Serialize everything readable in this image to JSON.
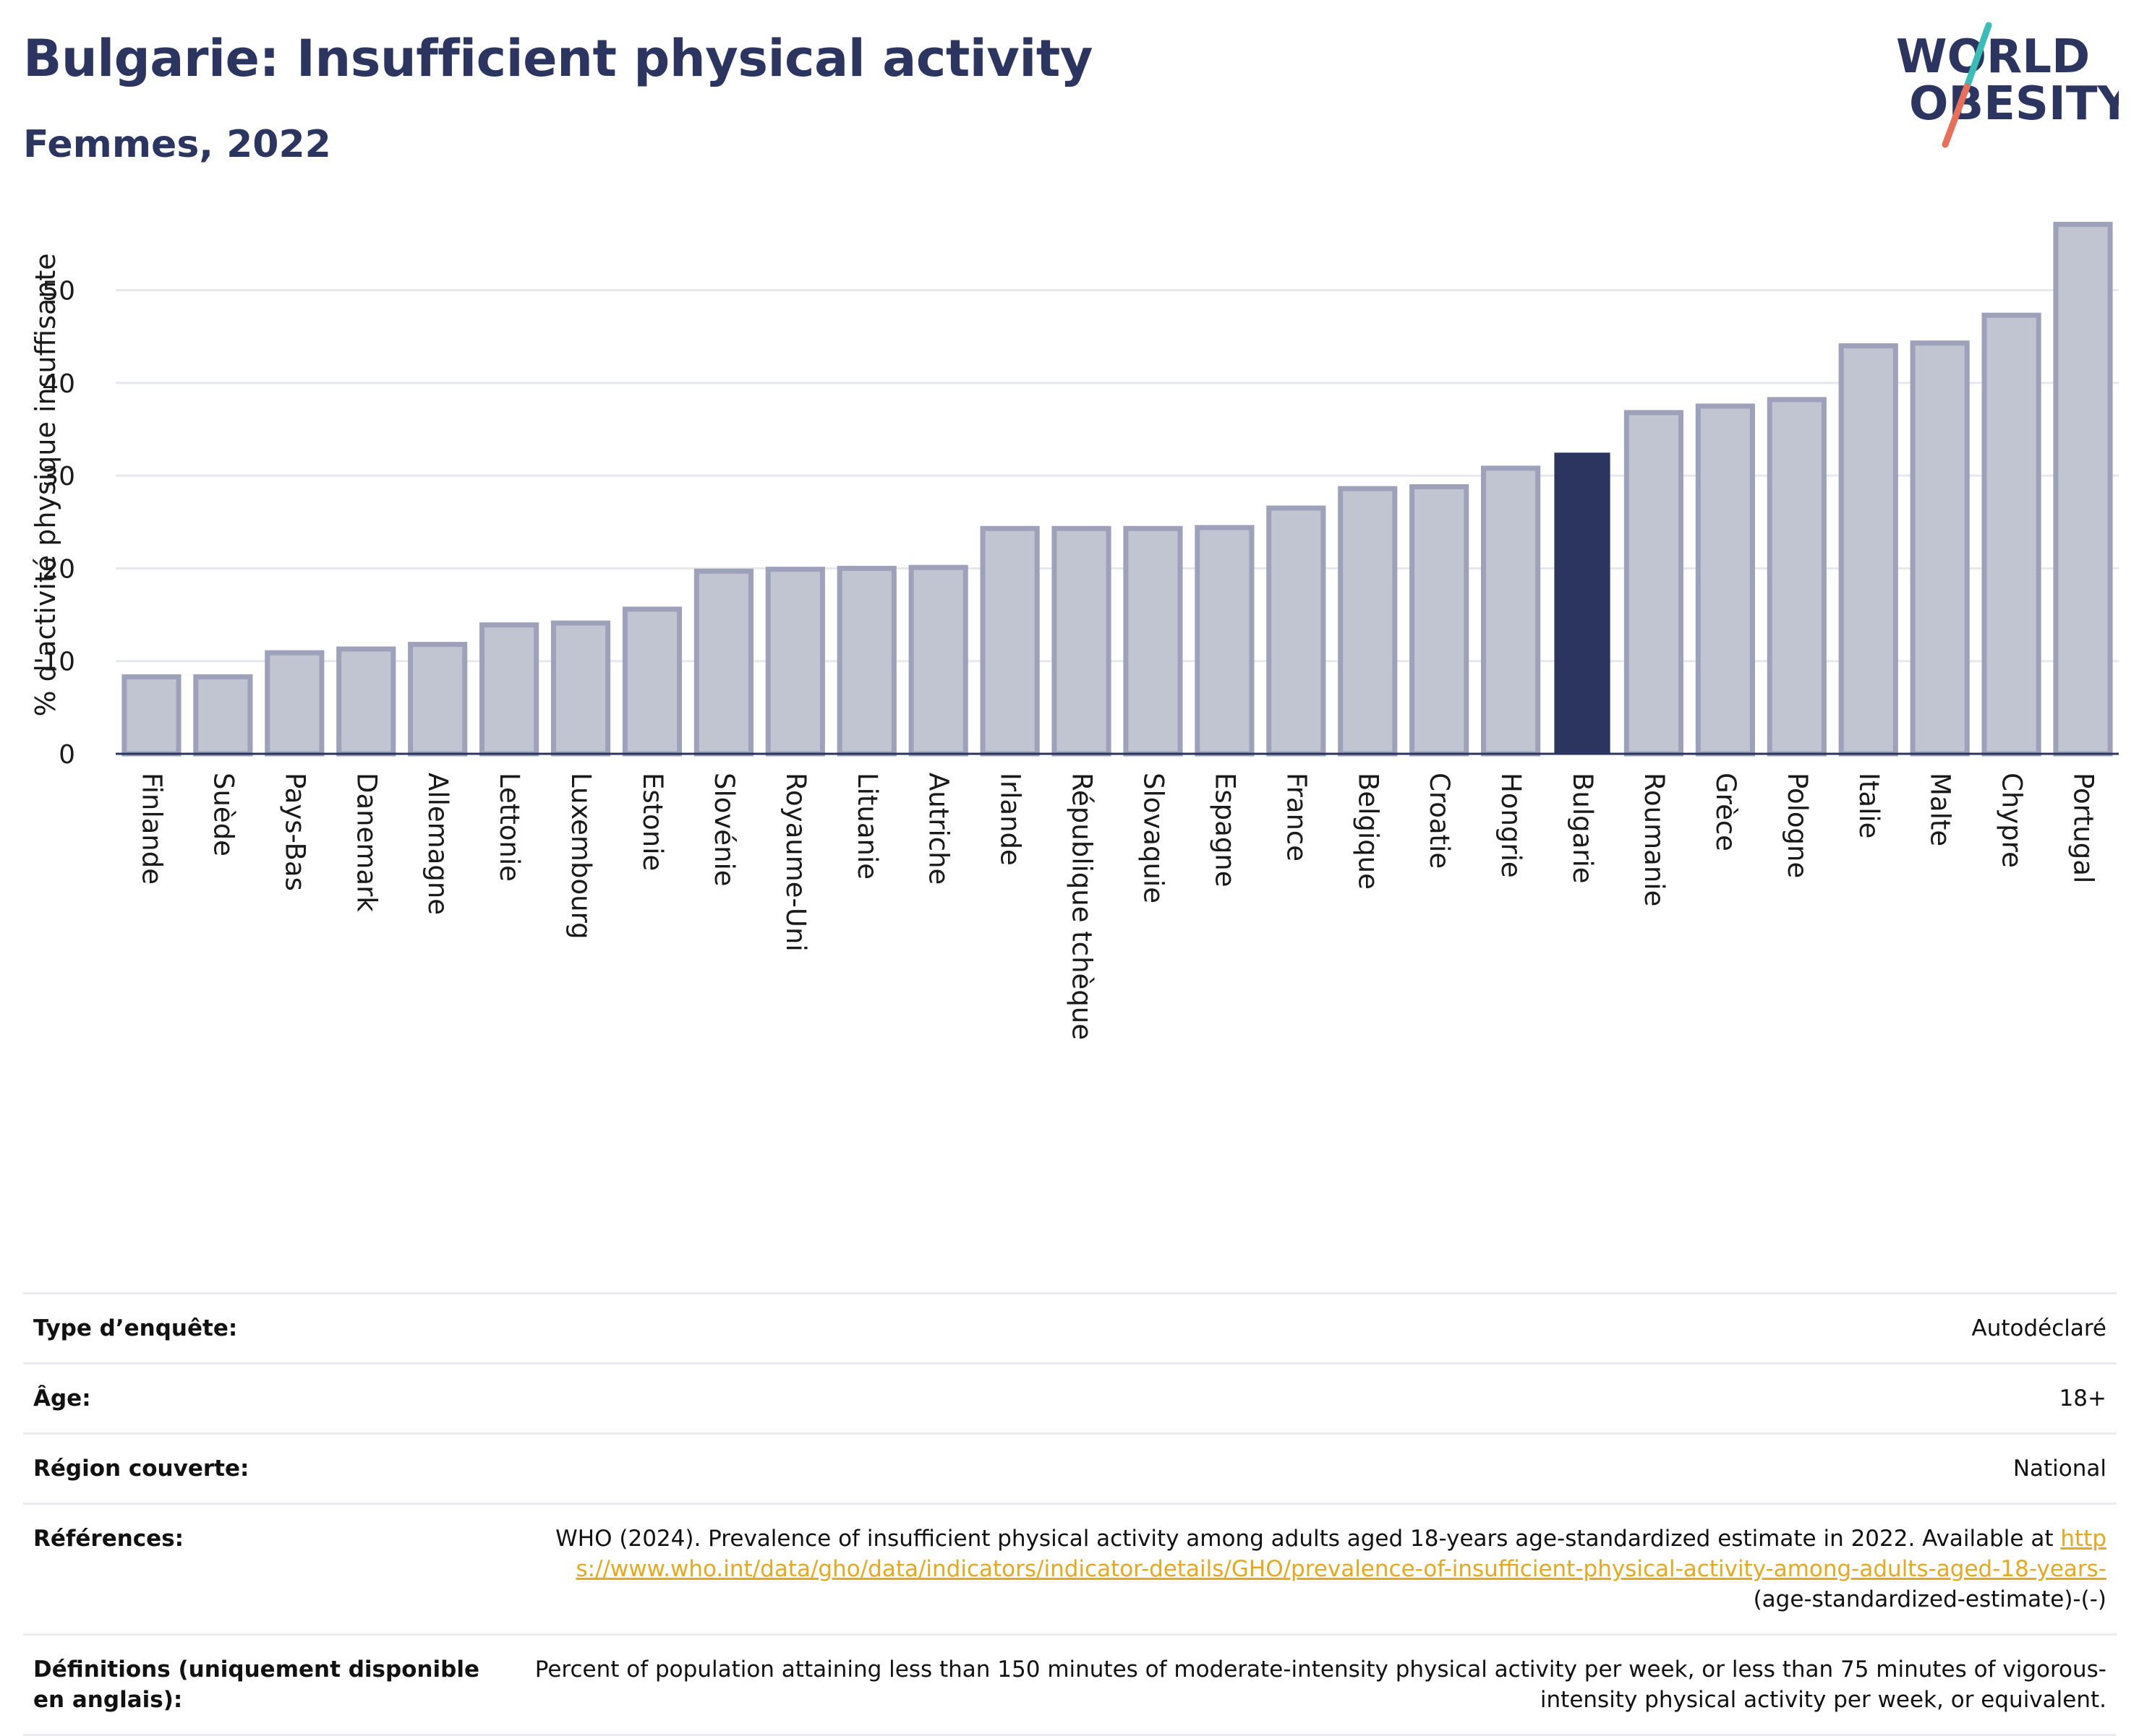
{
  "header": {
    "title": "Bulgarie: Insufficient physical activity",
    "subtitle": "Femmes, 2022"
  },
  "logo": {
    "line1": "WORLD",
    "line2": "OBESITY",
    "slash_top_color": "#3bbdb7",
    "slash_bottom_color": "#e8705a"
  },
  "colors": {
    "bar": "#c1c4d1",
    "bar_edge": "#9da2ba",
    "highlight": "#2b3560",
    "grid": "#e6e8ec",
    "axis": "#2b3560"
  },
  "chart_data": {
    "type": "bar",
    "title": "Bulgarie: Insufficient physical activity",
    "subtitle": "Femmes, 2022",
    "xlabel": "",
    "ylabel": "% d'activité physique insuffisante",
    "ylim": [
      0,
      58
    ],
    "yticks": [
      0,
      10,
      20,
      30,
      40,
      50
    ],
    "grid": true,
    "highlight": "Bulgarie",
    "categories": [
      "Finlande",
      "Suède",
      "Pays-Bas",
      "Danemark",
      "Allemagne",
      "Lettonie",
      "Luxembourg",
      "Estonie",
      "Slovénie",
      "Royaume-Uni",
      "Lituanie",
      "Autriche",
      "Irlande",
      "République tchèque",
      "Slovaquie",
      "Espagne",
      "France",
      "Belgique",
      "Croatie",
      "Hongrie",
      "Bulgarie",
      "Roumanie",
      "Grèce",
      "Pologne",
      "Italie",
      "Malte",
      "Chypre",
      "Portugal"
    ],
    "values": [
      8.3,
      8.3,
      10.9,
      11.3,
      11.8,
      13.9,
      14.1,
      15.6,
      19.7,
      19.9,
      20.0,
      20.1,
      24.3,
      24.3,
      24.3,
      24.4,
      26.5,
      28.6,
      28.8,
      30.8,
      32.4,
      36.8,
      37.5,
      38.2,
      44.0,
      44.3,
      47.3,
      57.1
    ]
  },
  "meta": {
    "survey_type": {
      "label": "Type d’enquête:",
      "value": "Autodéclaré"
    },
    "age": {
      "label": "Âge:",
      "value": "18+"
    },
    "region": {
      "label": "Région couverte:",
      "value": "National"
    },
    "references": {
      "label": "Références:",
      "text": "WHO (2024). Prevalence of insufficient physical activity among adults aged 18-years age-standardized estimate in 2022. Available at",
      "link": "https://www.who.int/data/gho/data/indicators/indicator-details/GHO/prevalence-of-insufficient-physical-activity-among-adults-aged-18-years-",
      "suffix": "(age-standardized-estimate)-(-)"
    },
    "definitions": {
      "label": "Définitions (uniquement disponible en anglais):",
      "value": "Percent of population attaining less than 150 minutes of moderate-intensity physical activity per week, or less than 75 minutes of vigorous-intensity physical activity per week, or equivalent."
    }
  }
}
